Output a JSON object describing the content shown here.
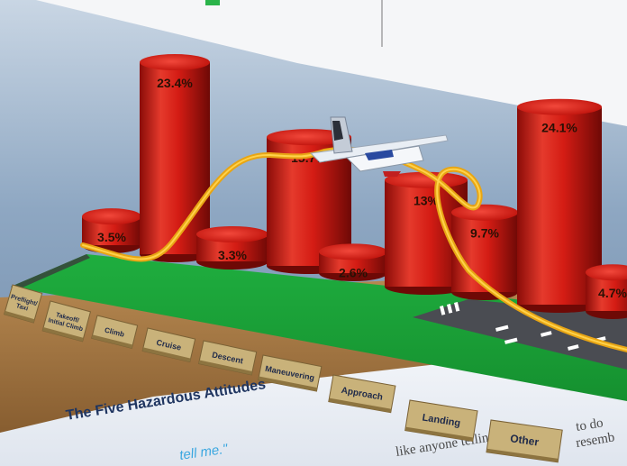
{
  "chart_data": {
    "type": "bar",
    "categories": [
      "Preflight/ Taxi",
      "Takeoff/ Initial Climb",
      "Climb",
      "Cruise",
      "Descent",
      "Maneuvering",
      "Approach",
      "Landing",
      "Other"
    ],
    "values": [
      3.5,
      23.4,
      3.3,
      15.7,
      2.6,
      13,
      9.7,
      24.1,
      4.7
    ],
    "value_labels": [
      "3.5%",
      "23.4%",
      "3.3%",
      "15.7%",
      "2.6%",
      "13%",
      "9.7%",
      "24.1%",
      "4.7%"
    ],
    "unit": "%",
    "title": ""
  },
  "book": {
    "heading": "The Five Hazardous Attitudes",
    "line1": "like anyone telling",
    "line2": "to do",
    "line3": "resemb",
    "quote": "tell me.\""
  },
  "colors": {
    "bar": "#d41c14",
    "field": "#1aa33a",
    "path": "#f2b21a",
    "tab": "#c9b27a",
    "sky": "#8fa9c4"
  }
}
